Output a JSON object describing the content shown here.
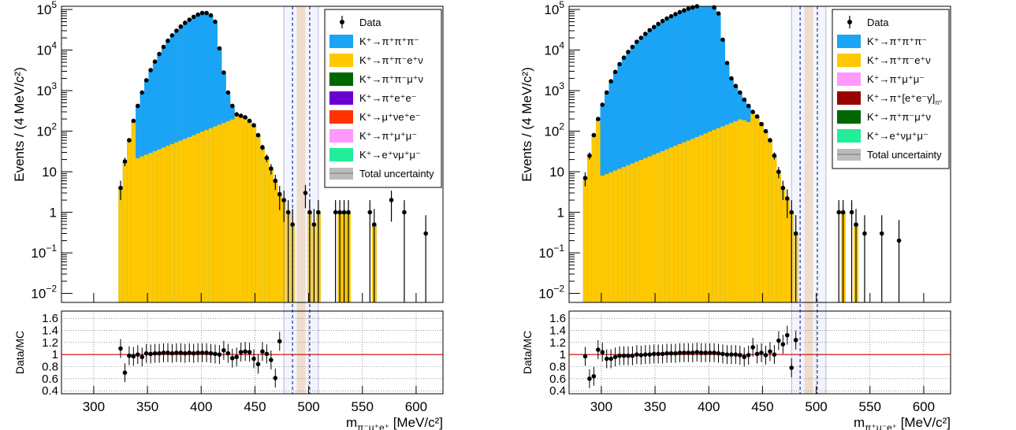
{
  "chart_data": [
    {
      "type": "bar",
      "xlabel_main": "m",
      "xlabel_sub": "π⁻μ⁺e⁺",
      "xlabel_unit": " [MeV/c²]",
      "ylabel": "Events / (4 MeV/c²)",
      "ratio_ylabel": "Data/MC",
      "xlim": [
        270,
        625
      ],
      "ylim": [
        0.006,
        120000
      ],
      "log_y": true,
      "ratio_ylim": [
        0.35,
        1.72
      ],
      "x_ticks": [
        "300",
        "350",
        "400",
        "450",
        "500",
        "550",
        "600"
      ],
      "y_ticks": [
        {
          "base": "10",
          "exp": "5",
          "v": 100000
        },
        {
          "base": "10",
          "exp": "4",
          "v": 10000
        },
        {
          "base": "10",
          "exp": "3",
          "v": 1000
        },
        {
          "base": "10",
          "exp": "2",
          "v": 100
        },
        {
          "base": "10",
          "exp": "",
          "v": 10
        },
        {
          "base": "1",
          "exp": "",
          "v": 1
        },
        {
          "base": "10",
          "exp": "−1",
          "v": 0.1
        },
        {
          "base": "10",
          "exp": "−2",
          "v": 0.01
        }
      ],
      "ratio_ticks": [
        "0.4",
        "0.6",
        "0.8",
        "1",
        "1.2",
        "1.4",
        "1.6"
      ],
      "signal_band": [
        489,
        497
      ],
      "outer_box": [
        477,
        509
      ],
      "inner_dashed": [
        485,
        501
      ],
      "legend": [
        {
          "label": "Data",
          "kind": "marker",
          "color": "#000000"
        },
        {
          "label": "K⁺→π⁺π⁺π⁻",
          "kind": "fill",
          "color": "#1ba4f5"
        },
        {
          "label": "K⁺→π⁺π⁻e⁺ν",
          "kind": "fill",
          "color": "#ffc800"
        },
        {
          "label": "K⁺→π⁺π⁻μ⁺ν",
          "kind": "fill",
          "color": "#006600"
        },
        {
          "label": "K⁺→π⁺e⁺e⁻",
          "kind": "fill",
          "color": "#6a00d0"
        },
        {
          "label": "K⁺→μ⁺νe⁺e⁻",
          "kind": "fill",
          "color": "#ff3300"
        },
        {
          "label": "K⁺→π⁺μ⁺μ⁻",
          "kind": "fill",
          "color": "#ff99ff"
        },
        {
          "label": "K⁺→e⁺νμ⁺μ⁻",
          "kind": "fill",
          "color": "#22ee99"
        },
        {
          "label": "Total uncertainty",
          "kind": "band",
          "color": "#bbbbbb"
        }
      ],
      "data_points": [
        [
          325,
          4
        ],
        [
          329,
          18
        ],
        [
          333,
          60
        ],
        [
          337,
          180
        ],
        [
          341,
          420
        ],
        [
          345,
          900
        ],
        [
          349,
          1800
        ],
        [
          353,
          3200
        ],
        [
          357,
          5200
        ],
        [
          361,
          8000
        ],
        [
          365,
          12000
        ],
        [
          369,
          17000
        ],
        [
          373,
          23000
        ],
        [
          377,
          30000
        ],
        [
          381,
          38000
        ],
        [
          385,
          47000
        ],
        [
          389,
          56000
        ],
        [
          393,
          66000
        ],
        [
          397,
          75000
        ],
        [
          401,
          82000
        ],
        [
          405,
          82000
        ],
        [
          409,
          72000
        ],
        [
          413,
          50000
        ],
        [
          417,
          11000
        ],
        [
          421,
          2800
        ],
        [
          425,
          900
        ],
        [
          429,
          420
        ],
        [
          433,
          260
        ],
        [
          437,
          240
        ],
        [
          441,
          220
        ],
        [
          445,
          180
        ],
        [
          449,
          140
        ],
        [
          453,
          80
        ],
        [
          457,
          40
        ],
        [
          461,
          22
        ],
        [
          465,
          12
        ],
        [
          469,
          6
        ],
        [
          473,
          2.8
        ],
        [
          477,
          2
        ],
        [
          481,
          1
        ],
        [
          485,
          0.5
        ],
        [
          497,
          3
        ],
        [
          501,
          1
        ],
        [
          505,
          0.5
        ],
        [
          509,
          1
        ],
        [
          525,
          1
        ],
        [
          529,
          1
        ],
        [
          533,
          1
        ],
        [
          537,
          1
        ],
        [
          557,
          1
        ],
        [
          561,
          0.5
        ],
        [
          577,
          2
        ],
        [
          589,
          1
        ],
        [
          609,
          0.3
        ]
      ],
      "ratio_points": [
        [
          325,
          1.1
        ],
        [
          329,
          0.7
        ],
        [
          333,
          0.98
        ],
        [
          337,
          0.97
        ],
        [
          341,
          1.0
        ],
        [
          345,
          0.96
        ],
        [
          349,
          1.02
        ],
        [
          353,
          1.01
        ],
        [
          357,
          1.02
        ],
        [
          361,
          1.02
        ],
        [
          365,
          1.03
        ],
        [
          369,
          1.03
        ],
        [
          373,
          1.02
        ],
        [
          377,
          1.03
        ],
        [
          381,
          1.03
        ],
        [
          385,
          1.02
        ],
        [
          389,
          1.03
        ],
        [
          393,
          1.02
        ],
        [
          397,
          1.03
        ],
        [
          401,
          1.03
        ],
        [
          405,
          1.03
        ],
        [
          409,
          1.02
        ],
        [
          413,
          1.01
        ],
        [
          417,
          1.0
        ],
        [
          421,
          1.07
        ],
        [
          425,
          1.02
        ],
        [
          429,
          0.94
        ],
        [
          433,
          0.96
        ],
        [
          437,
          1.04
        ],
        [
          441,
          1.05
        ],
        [
          445,
          1.04
        ],
        [
          449,
          0.93
        ],
        [
          453,
          0.84
        ],
        [
          457,
          1.05
        ],
        [
          461,
          1.01
        ],
        [
          465,
          0.91
        ],
        [
          469,
          0.61
        ],
        [
          473,
          1.22
        ]
      ]
    },
    {
      "type": "bar",
      "xlabel_main": "m",
      "xlabel_sub": "π⁺μ⁻e⁺",
      "xlabel_unit": " [MeV/c²]",
      "ylabel": "Events / (4 MeV/c²)",
      "ratio_ylabel": "Data/MC",
      "xlim": [
        270,
        625
      ],
      "ylim": [
        0.006,
        120000
      ],
      "log_y": true,
      "ratio_ylim": [
        0.35,
        1.72
      ],
      "x_ticks": [
        "300",
        "350",
        "400",
        "450",
        "500",
        "550",
        "600"
      ],
      "y_ticks": [
        {
          "base": "10",
          "exp": "5",
          "v": 100000
        },
        {
          "base": "10",
          "exp": "4",
          "v": 10000
        },
        {
          "base": "10",
          "exp": "3",
          "v": 1000
        },
        {
          "base": "10",
          "exp": "2",
          "v": 100
        },
        {
          "base": "10",
          "exp": "",
          "v": 10
        },
        {
          "base": "1",
          "exp": "",
          "v": 1
        },
        {
          "base": "10",
          "exp": "−1",
          "v": 0.1
        },
        {
          "base": "10",
          "exp": "−2",
          "v": 0.01
        }
      ],
      "ratio_ticks": [
        "0.4",
        "0.6",
        "0.8",
        "1",
        "1.2",
        "1.4",
        "1.6"
      ],
      "signal_band": [
        489,
        497
      ],
      "outer_box": [
        477,
        509
      ],
      "inner_dashed": [
        485,
        501
      ],
      "legend": [
        {
          "label": "Data",
          "kind": "marker",
          "color": "#000000"
        },
        {
          "label": "K⁺→π⁺π⁺π⁻",
          "kind": "fill",
          "color": "#1ba4f5"
        },
        {
          "label": "K⁺→π⁺π⁻e⁺ν",
          "kind": "fill",
          "color": "#ffc800"
        },
        {
          "label": "K⁺→π⁺μ⁺μ⁻",
          "kind": "fill",
          "color": "#ff99ff"
        },
        {
          "label": "K⁺→π⁺[e⁺e⁻γ]",
          "sub": "π⁰",
          "kind": "fill",
          "color": "#990000"
        },
        {
          "label": "K⁺→π⁺π⁻μ⁺ν",
          "kind": "fill",
          "color": "#006600"
        },
        {
          "label": "K⁺→e⁺νμ⁺μ⁻",
          "kind": "fill",
          "color": "#22ee99"
        },
        {
          "label": "Total uncertainty",
          "kind": "band",
          "color": "#bbbbbb"
        }
      ],
      "data_points": [
        [
          285,
          7
        ],
        [
          289,
          25
        ],
        [
          293,
          80
        ],
        [
          297,
          200
        ],
        [
          301,
          450
        ],
        [
          305,
          900
        ],
        [
          309,
          1700
        ],
        [
          313,
          2900
        ],
        [
          317,
          4500
        ],
        [
          321,
          6500
        ],
        [
          325,
          9000
        ],
        [
          329,
          12000
        ],
        [
          333,
          16000
        ],
        [
          337,
          20000
        ],
        [
          341,
          25000
        ],
        [
          345,
          31000
        ],
        [
          349,
          37000
        ],
        [
          353,
          44000
        ],
        [
          357,
          52000
        ],
        [
          361,
          60000
        ],
        [
          365,
          68000
        ],
        [
          369,
          77000
        ],
        [
          373,
          86000
        ],
        [
          377,
          95000
        ],
        [
          381,
          105000
        ],
        [
          385,
          113000
        ],
        [
          389,
          120000
        ],
        [
          393,
          125000
        ],
        [
          397,
          128000
        ],
        [
          401,
          125000
        ],
        [
          405,
          113000
        ],
        [
          409,
          80000
        ],
        [
          413,
          18000
        ],
        [
          417,
          4800
        ],
        [
          421,
          2000
        ],
        [
          425,
          1300
        ],
        [
          429,
          900
        ],
        [
          433,
          600
        ],
        [
          437,
          420
        ],
        [
          441,
          300
        ],
        [
          445,
          230
        ],
        [
          449,
          150
        ],
        [
          453,
          100
        ],
        [
          457,
          60
        ],
        [
          461,
          25
        ],
        [
          465,
          10
        ],
        [
          469,
          4
        ],
        [
          473,
          2.2
        ],
        [
          477,
          1
        ],
        [
          481,
          0.3
        ],
        [
          521,
          1
        ],
        [
          525,
          1
        ],
        [
          533,
          1
        ],
        [
          537,
          0.5
        ],
        [
          545,
          0.3
        ],
        [
          561,
          0.3
        ],
        [
          577,
          0.2
        ]
      ],
      "ratio_points": [
        [
          285,
          0.97
        ],
        [
          289,
          0.6
        ],
        [
          293,
          0.64
        ],
        [
          297,
          1.08
        ],
        [
          301,
          1.04
        ],
        [
          305,
          0.93
        ],
        [
          309,
          0.93
        ],
        [
          313,
          0.96
        ],
        [
          317,
          0.98
        ],
        [
          321,
          0.98
        ],
        [
          325,
          0.98
        ],
        [
          329,
          0.98
        ],
        [
          333,
          1.0
        ],
        [
          337,
          0.99
        ],
        [
          341,
          1.0
        ],
        [
          345,
          1.0
        ],
        [
          349,
          1.01
        ],
        [
          353,
          1.01
        ],
        [
          357,
          1.01
        ],
        [
          361,
          1.02
        ],
        [
          365,
          1.02
        ],
        [
          369,
          1.02
        ],
        [
          373,
          1.03
        ],
        [
          377,
          1.03
        ],
        [
          381,
          1.03
        ],
        [
          385,
          1.03
        ],
        [
          389,
          1.04
        ],
        [
          393,
          1.03
        ],
        [
          397,
          1.03
        ],
        [
          401,
          1.03
        ],
        [
          405,
          1.03
        ],
        [
          409,
          1.02
        ],
        [
          413,
          1.01
        ],
        [
          417,
          1.0
        ],
        [
          421,
          1.0
        ],
        [
          425,
          1.0
        ],
        [
          429,
          0.99
        ],
        [
          433,
          0.96
        ],
        [
          437,
          0.99
        ],
        [
          441,
          1.12
        ],
        [
          445,
          1.01
        ],
        [
          449,
          1.03
        ],
        [
          453,
          0.99
        ],
        [
          457,
          1.05
        ],
        [
          461,
          1.0
        ],
        [
          465,
          1.23
        ],
        [
          469,
          1.17
        ],
        [
          473,
          1.32
        ],
        [
          477,
          0.78
        ],
        [
          481,
          1.24
        ]
      ]
    }
  ]
}
